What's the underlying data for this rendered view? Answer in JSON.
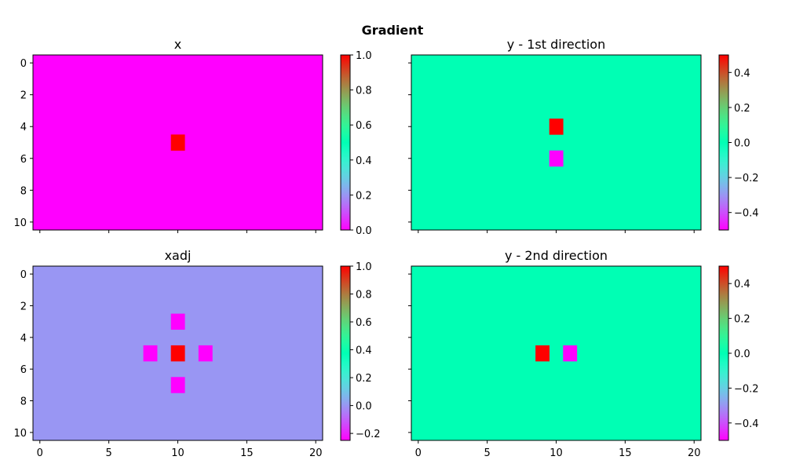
{
  "figure": {
    "title": "Gradient"
  },
  "chart_data": [
    {
      "type": "heatmap",
      "title": "x",
      "rows": 11,
      "cols": 21,
      "background": 0.0,
      "cells": [
        {
          "row": 5,
          "col": 10,
          "value": 1.0
        }
      ],
      "clim": [
        0.0,
        1.0
      ],
      "colorbar_ticks": [
        "0.0",
        "0.2",
        "0.4",
        "0.6",
        "0.8",
        "1.0"
      ],
      "colorbar_tick_values": [
        0.0,
        0.2,
        0.4,
        0.6,
        0.8,
        1.0
      ],
      "yticks": [
        0,
        2,
        4,
        6,
        8,
        10
      ],
      "xticks": [],
      "show_ytick_labels": true,
      "colormap": "rainbow"
    },
    {
      "type": "heatmap",
      "title": "y - 1st direction",
      "rows": 11,
      "cols": 21,
      "background": 0.0,
      "cells": [
        {
          "row": 4,
          "col": 10,
          "value": 0.5
        },
        {
          "row": 6,
          "col": 10,
          "value": -0.5
        }
      ],
      "clim": [
        -0.5,
        0.5
      ],
      "colorbar_ticks": [
        "−0.4",
        "−0.2",
        "0.0",
        "0.2",
        "0.4"
      ],
      "colorbar_tick_values": [
        -0.4,
        -0.2,
        0.0,
        0.2,
        0.4
      ],
      "yticks": [
        0,
        2,
        4,
        6,
        8,
        10
      ],
      "xticks": [],
      "show_ytick_labels": false,
      "colormap": "rainbow"
    },
    {
      "type": "heatmap",
      "title": "xadj",
      "rows": 11,
      "cols": 21,
      "background": 0.0,
      "cells": [
        {
          "row": 3,
          "col": 10,
          "value": -0.25
        },
        {
          "row": 5,
          "col": 8,
          "value": -0.25
        },
        {
          "row": 5,
          "col": 10,
          "value": 1.0
        },
        {
          "row": 5,
          "col": 12,
          "value": -0.25
        },
        {
          "row": 7,
          "col": 10,
          "value": -0.25
        }
      ],
      "clim": [
        -0.25,
        1.0
      ],
      "colorbar_ticks": [
        "−0.2",
        "0.0",
        "0.2",
        "0.4",
        "0.6",
        "0.8",
        "1.0"
      ],
      "colorbar_tick_values": [
        -0.2,
        0.0,
        0.2,
        0.4,
        0.6,
        0.8,
        1.0
      ],
      "yticks": [
        0,
        2,
        4,
        6,
        8,
        10
      ],
      "xticks": [
        0,
        5,
        10,
        15,
        20
      ],
      "show_ytick_labels": true,
      "colormap": "rainbow"
    },
    {
      "type": "heatmap",
      "title": "y - 2nd direction",
      "rows": 11,
      "cols": 21,
      "background": 0.0,
      "cells": [
        {
          "row": 5,
          "col": 9,
          "value": 0.5
        },
        {
          "row": 5,
          "col": 11,
          "value": -0.5
        }
      ],
      "clim": [
        -0.5,
        0.5
      ],
      "colorbar_ticks": [
        "−0.4",
        "−0.2",
        "0.0",
        "0.2",
        "0.4"
      ],
      "colorbar_tick_values": [
        -0.4,
        -0.2,
        0.0,
        0.2,
        0.4
      ],
      "yticks": [
        0,
        2,
        4,
        6,
        8,
        10
      ],
      "xticks": [
        0,
        5,
        10,
        15,
        20
      ],
      "show_ytick_labels": false,
      "colormap": "rainbow"
    }
  ]
}
